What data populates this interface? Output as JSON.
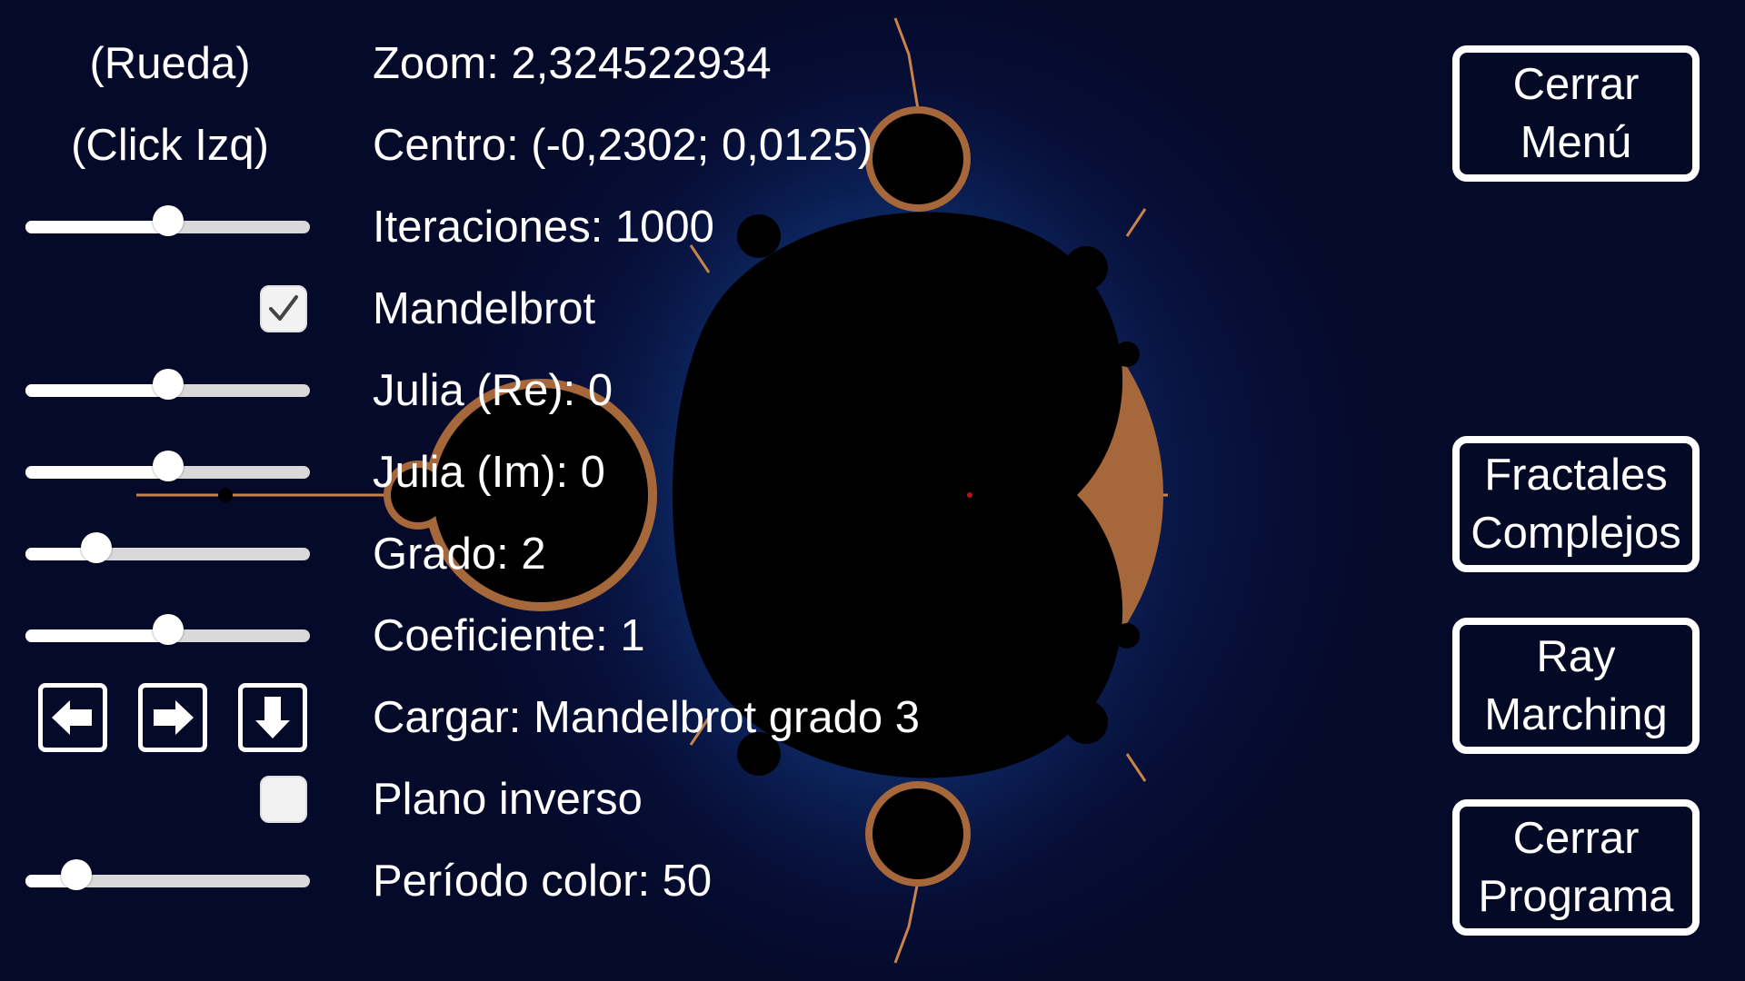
{
  "controls": {
    "wheel_hint": "(Rueda)",
    "click_hint": "(Click Izq)",
    "zoom": "Zoom: 2,324522934",
    "center": "Centro: (-0,2302; 0,0125)",
    "iterations": "Iteraciones: 1000",
    "mandelbrot": "Mandelbrot",
    "julia_re": "Julia (Re): 0",
    "julia_im": "Julia (Im): 0",
    "degree": "Grado: 2",
    "coefficient": "Coeficiente: 1",
    "load": "Cargar:  Mandelbrot grado 3",
    "inverse_plane": "Plano inverso",
    "color_period": "Período color: 50"
  },
  "sliders": {
    "iterations": 0.5,
    "julia_re": 0.5,
    "julia_im": 0.5,
    "degree": 0.25,
    "coefficient": 0.5,
    "color_period": 0.18
  },
  "checkboxes": {
    "mandelbrot": true,
    "inverse_plane": false
  },
  "arrows": [
    "arrow-left-icon",
    "arrow-right-icon",
    "arrow-down-icon"
  ],
  "menu": {
    "close_menu": [
      "Cerrar",
      "Menú"
    ],
    "complex_fractals": [
      "Fractales",
      "Complejos"
    ],
    "ray_marching": [
      "Ray",
      "Marching"
    ],
    "close_program": [
      "Cerrar",
      "Programa"
    ]
  },
  "colors": {
    "background": "#050a2a",
    "glow": "#0d2a66",
    "fractal_edge": "#c9834a",
    "set": "#000000",
    "ui": "#ffffff"
  }
}
